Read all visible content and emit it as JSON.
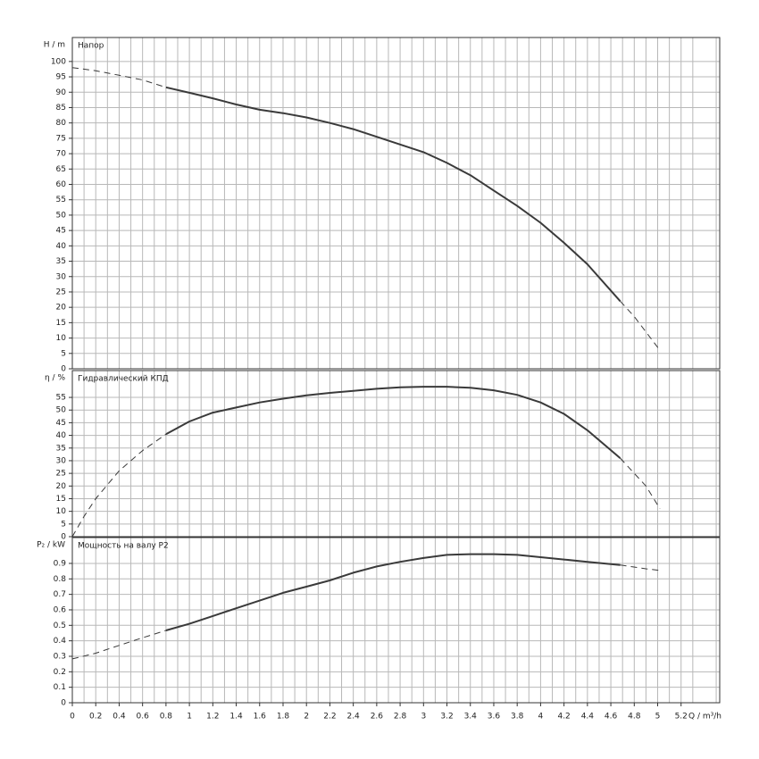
{
  "chart_data": [
    {
      "type": "line",
      "ylabel": "H / m",
      "title": "Напор",
      "xlim": [
        0,
        5.53
      ],
      "ylim": [
        0,
        107.8
      ],
      "yticks": [
        0,
        5,
        10,
        15,
        20,
        25,
        30,
        35,
        40,
        45,
        50,
        55,
        60,
        65,
        70,
        75,
        80,
        85,
        90,
        95,
        100
      ],
      "grid": true,
      "color": "#3a3a3a",
      "series": [
        {
          "line_style": "dashed",
          "x": [
            0,
            0.2,
            0.4,
            0.6,
            0.8
          ],
          "values": [
            98,
            97,
            95.5,
            94,
            91.6
          ]
        },
        {
          "line_style": "solid",
          "x": [
            0.8,
            1.0,
            1.2,
            1.4,
            1.6,
            1.8,
            2.0,
            2.2,
            2.4,
            2.6,
            2.8,
            3.0,
            3.2,
            3.4,
            3.6,
            3.8,
            4.0,
            4.2,
            4.4,
            4.68
          ],
          "values": [
            91.6,
            89.8,
            88,
            86,
            84.3,
            83.2,
            81.8,
            80,
            78,
            75.5,
            73,
            70.5,
            67,
            63,
            58,
            53,
            47.5,
            41,
            34,
            22
          ]
        },
        {
          "line_style": "dashed",
          "x": [
            4.68,
            4.8,
            5.02
          ],
          "values": [
            22,
            17,
            6
          ]
        }
      ]
    },
    {
      "type": "line",
      "ylabel": "η / %",
      "title": "Гидравлический КПД",
      "xlim": [
        0,
        5.53
      ],
      "ylim": [
        0,
        65.6
      ],
      "yticks": [
        0,
        5,
        10,
        15,
        20,
        25,
        30,
        35,
        40,
        45,
        50,
        55
      ],
      "grid": true,
      "color": "#3a3a3a",
      "series": [
        {
          "line_style": "dashed",
          "x": [
            0,
            0.1,
            0.2,
            0.4,
            0.6,
            0.8
          ],
          "values": [
            0,
            8,
            15,
            26,
            34,
            40.5
          ]
        },
        {
          "line_style": "solid",
          "x": [
            0.8,
            1.0,
            1.2,
            1.4,
            1.6,
            1.8,
            2.0,
            2.2,
            2.4,
            2.6,
            2.8,
            3.0,
            3.2,
            3.4,
            3.6,
            3.8,
            4.0,
            4.2,
            4.4,
            4.68
          ],
          "values": [
            40.5,
            45.5,
            49,
            51,
            53,
            54.5,
            55.8,
            56.8,
            57.6,
            58.4,
            59,
            59.2,
            59.2,
            58.8,
            57.8,
            56,
            53,
            48.5,
            42,
            31
          ]
        },
        {
          "line_style": "dashed",
          "x": [
            4.68,
            4.9,
            5.02
          ],
          "values": [
            31,
            20,
            11
          ]
        }
      ]
    },
    {
      "type": "line",
      "ylabel": "P₂ / kW",
      "title": "Мощность на валу P2",
      "xlabel": "Q / m³/h",
      "xlim": [
        0,
        5.53
      ],
      "ylim": [
        0,
        1.067
      ],
      "xticks": [
        0,
        0.2,
        0.4,
        0.6,
        0.8,
        1,
        1.2,
        1.4,
        1.6,
        1.8,
        2,
        2.2,
        2.4,
        2.6,
        2.8,
        3,
        3.2,
        3.4,
        3.6,
        3.8,
        4,
        4.2,
        4.4,
        4.6,
        4.8,
        5,
        5.2
      ],
      "yticks": [
        0,
        0.1,
        0.2,
        0.3,
        0.4,
        0.5,
        0.6,
        0.7,
        0.8,
        0.9
      ],
      "grid": true,
      "color": "#3a3a3a",
      "series": [
        {
          "line_style": "dashed",
          "x": [
            0,
            0.2,
            0.4,
            0.6,
            0.8
          ],
          "values": [
            0.283,
            0.32,
            0.37,
            0.42,
            0.467
          ]
        },
        {
          "line_style": "solid",
          "x": [
            0.8,
            1.0,
            1.2,
            1.4,
            1.6,
            1.8,
            2.0,
            2.2,
            2.4,
            2.6,
            2.8,
            3.0,
            3.2,
            3.4,
            3.6,
            3.8,
            4.0,
            4.2,
            4.4,
            4.68
          ],
          "values": [
            0.467,
            0.51,
            0.56,
            0.61,
            0.66,
            0.71,
            0.75,
            0.79,
            0.84,
            0.88,
            0.91,
            0.935,
            0.955,
            0.96,
            0.96,
            0.955,
            0.94,
            0.925,
            0.91,
            0.89
          ]
        },
        {
          "line_style": "dashed",
          "x": [
            4.68,
            4.9,
            5.02
          ],
          "values": [
            0.89,
            0.865,
            0.855
          ]
        }
      ]
    }
  ]
}
